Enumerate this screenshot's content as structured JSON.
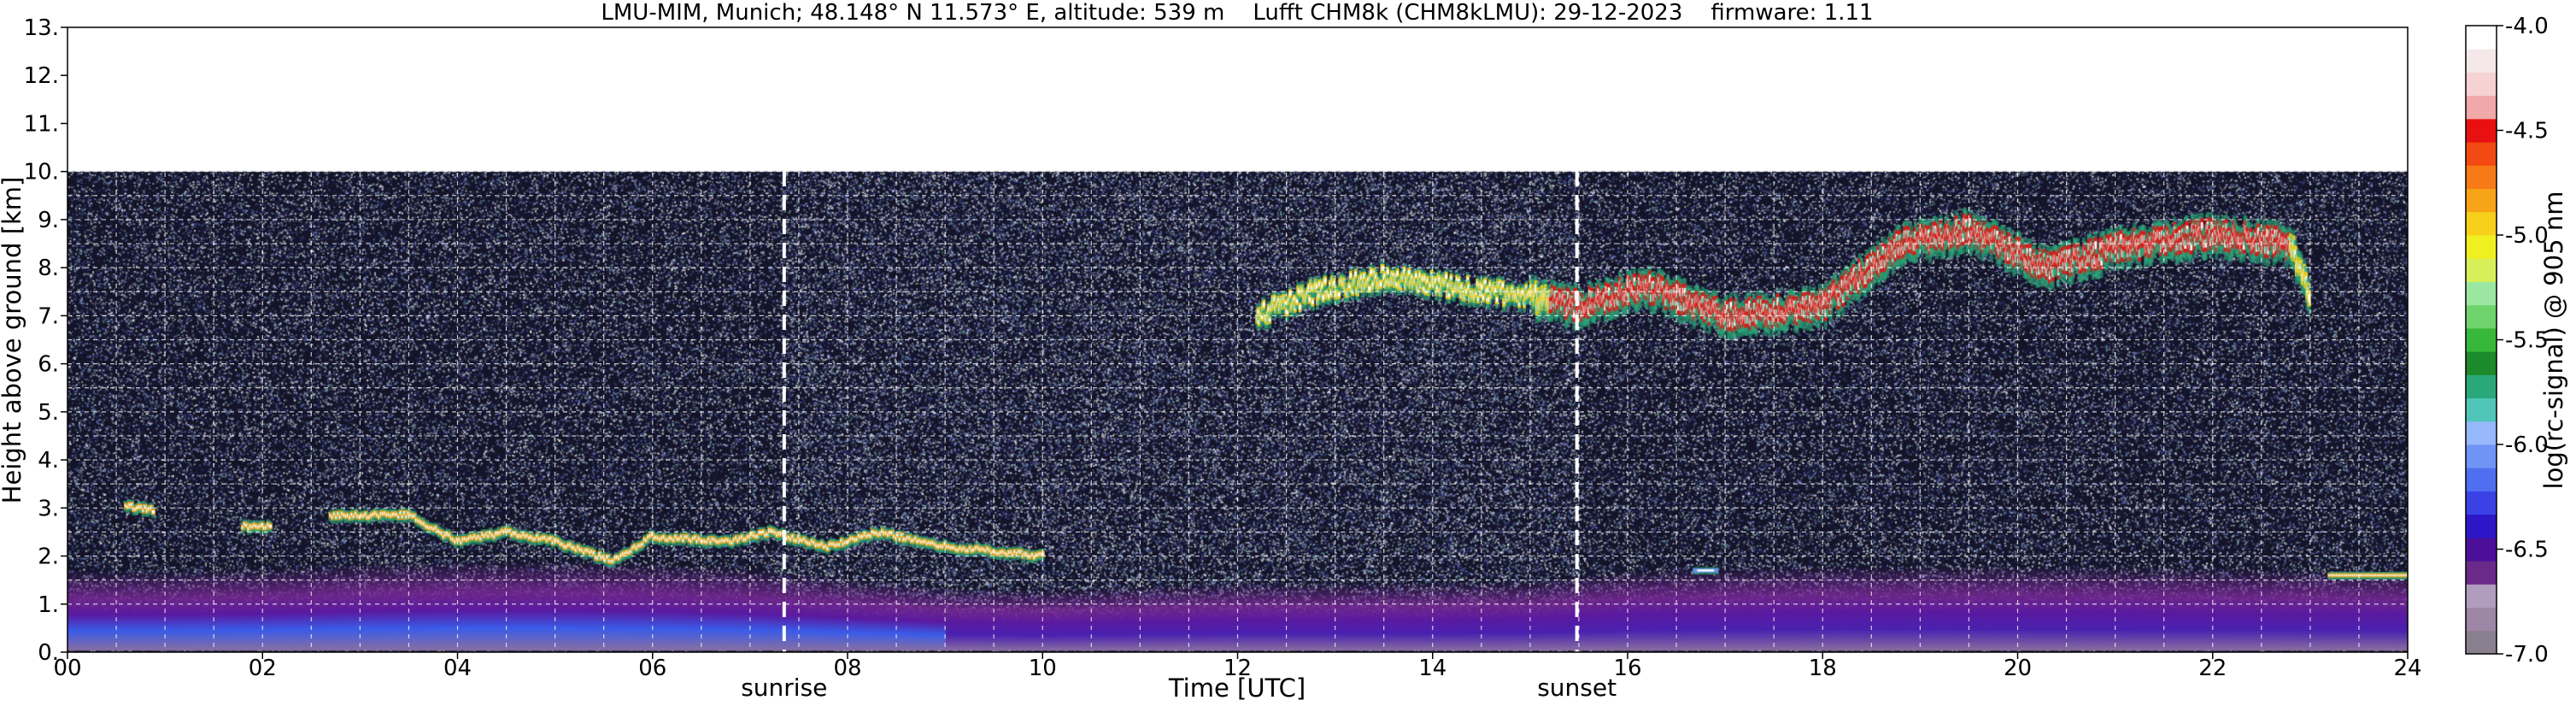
{
  "chart_data": {
    "type": "heatmap",
    "title": "LMU-MIM, Munich; 48.148° N 11.573° E, altitude: 539 m    Lufft CHM8k (CHM8kLMU): 29-12-2023    firmware: 1.11",
    "xlabel": "Time [UTC]",
    "ylabel": "Height above ground [km]",
    "xlim": [
      0,
      24
    ],
    "ylim": [
      0,
      13
    ],
    "x_ticks": [
      "00",
      "02",
      "04",
      "06",
      "08",
      "10",
      "12",
      "14",
      "16",
      "18",
      "20",
      "22",
      "24"
    ],
    "y_ticks": [
      "0.",
      "1.",
      "2.",
      "3.",
      "4.",
      "5.",
      "6.",
      "7.",
      "8.",
      "9.",
      "10.",
      "11.",
      "12.",
      "13."
    ],
    "grid": true,
    "data_top_km": 10,
    "colorbar": {
      "label": "log(rc-signal) @ 905 nm",
      "range": [
        -7.0,
        -4.0
      ],
      "ticks": [
        "-4.0",
        "-4.5",
        "-5.0",
        "-5.5",
        "-6.0",
        "-6.5",
        "-7.0"
      ],
      "tick_values": [
        -4.0,
        -4.5,
        -5.0,
        -5.5,
        -6.0,
        -6.5,
        -7.0
      ],
      "colors": [
        "#8a7f8e",
        "#9d86a6",
        "#b09dbd",
        "#6a2a8a",
        "#4b0f9a",
        "#2b16c8",
        "#3a42e6",
        "#4f6ef0",
        "#6f94f6",
        "#97b8fa",
        "#4fc6b8",
        "#2aa87a",
        "#1c8a2a",
        "#37b83a",
        "#6fd46b",
        "#9be6a0",
        "#d7f05a",
        "#f0f020",
        "#f7d01c",
        "#f7a418",
        "#f77a16",
        "#f24a12",
        "#e81010",
        "#f0a8a8",
        "#f6d2d2",
        "#f4e8ea",
        "#ffffff"
      ]
    },
    "annotations": [
      {
        "text": "sunrise",
        "x": 7.35
      },
      {
        "text": "sunset",
        "x": 15.48
      }
    ],
    "features": {
      "boundary_layer": [
        [
          0,
          0.7
        ],
        [
          1,
          0.7
        ],
        [
          2,
          0.75
        ],
        [
          3,
          0.85
        ],
        [
          4,
          0.9
        ],
        [
          5,
          0.9
        ],
        [
          6,
          0.85
        ],
        [
          7,
          0.75
        ],
        [
          8,
          0.55
        ],
        [
          9,
          0.35
        ],
        [
          10,
          0.3
        ],
        [
          12,
          0.45
        ],
        [
          14,
          0.45
        ],
        [
          15,
          0.5
        ],
        [
          16,
          0.7
        ],
        [
          18,
          0.8
        ],
        [
          20,
          0.8
        ],
        [
          22,
          0.75
        ],
        [
          24,
          0.7
        ]
      ],
      "low_clouds": [
        [
          0.6,
          3.05
        ],
        [
          1.9,
          2.6
        ],
        [
          2.8,
          2.85
        ],
        [
          3.5,
          2.85
        ],
        [
          4.0,
          2.3
        ],
        [
          4.5,
          2.5
        ],
        [
          5.0,
          2.3
        ],
        [
          5.6,
          1.9
        ],
        [
          6.0,
          2.4
        ],
        [
          6.8,
          2.3
        ],
        [
          7.2,
          2.5
        ],
        [
          7.8,
          2.2
        ],
        [
          8.3,
          2.5
        ],
        [
          9.0,
          2.2
        ],
        [
          9.5,
          2.1
        ],
        [
          10.0,
          2.0
        ]
      ],
      "high_clouds": [
        [
          12.2,
          7.0
        ],
        [
          12.8,
          7.5
        ],
        [
          13.5,
          7.8
        ],
        [
          14.2,
          7.6
        ],
        [
          15.0,
          7.4
        ],
        [
          15.5,
          7.2
        ],
        [
          16.2,
          7.6
        ],
        [
          17.0,
          7.0
        ],
        [
          18.0,
          7.2
        ],
        [
          18.8,
          8.5
        ],
        [
          19.5,
          8.8
        ],
        [
          20.3,
          8.0
        ],
        [
          21.0,
          8.4
        ],
        [
          22.0,
          8.7
        ],
        [
          22.8,
          8.5
        ],
        [
          23.0,
          7.4
        ]
      ],
      "late_low_cloud": [
        [
          16.8,
          1.7
        ],
        [
          23.5,
          1.6
        ]
      ]
    }
  }
}
